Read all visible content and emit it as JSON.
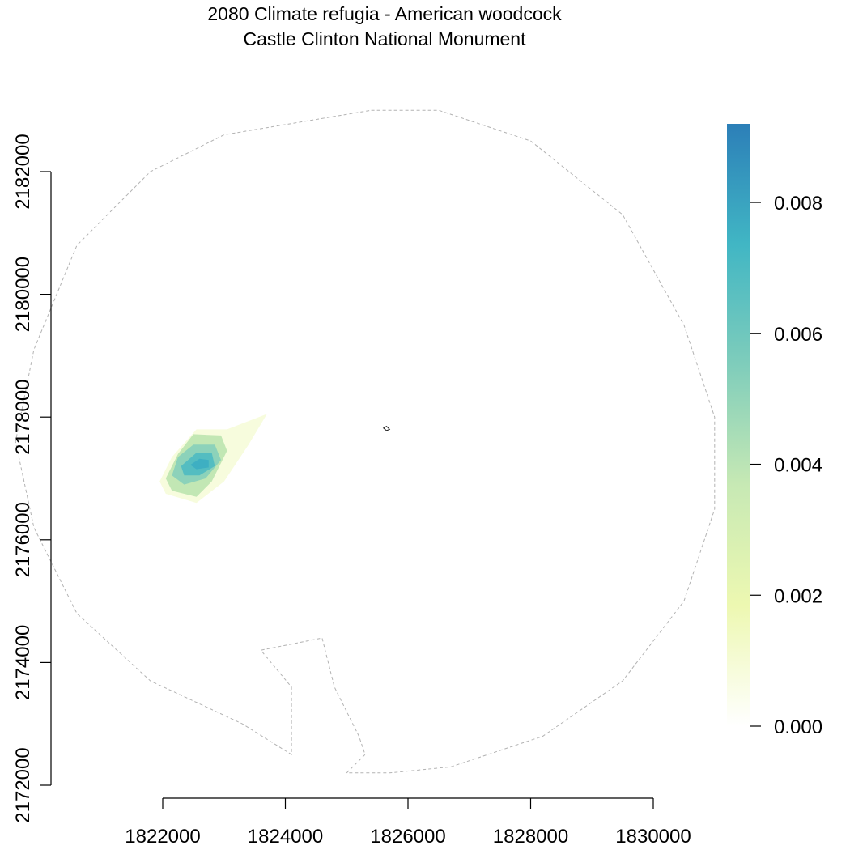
{
  "chart_data": {
    "type": "heatmap",
    "title": "2080 Climate refugia - American woodcock",
    "subtitle": "Castle Clinton National Monument",
    "xlabel": "",
    "ylabel": "",
    "xlim": [
      1820000,
      1830000
    ],
    "ylim": [
      2172000,
      2182000
    ],
    "x_ticks": [
      1822000,
      1824000,
      1826000,
      1828000,
      1830000
    ],
    "y_ticks": [
      2172000,
      2174000,
      2176000,
      2178000,
      2180000,
      2182000
    ],
    "x_tick_labels": [
      "1822000",
      "1824000",
      "1826000",
      "1828000",
      "1830000"
    ],
    "y_tick_labels": [
      "2172000",
      "2174000",
      "2176000",
      "2178000",
      "2180000",
      "2182000"
    ],
    "grid": false,
    "legend": {
      "placement": "right",
      "min": 0.0,
      "max": 0.0092,
      "ticks": [
        0.0,
        0.002,
        0.004,
        0.006,
        0.008
      ],
      "tick_labels": [
        "0.000",
        "0.002",
        "0.004",
        "0.006",
        "0.008"
      ],
      "colors": [
        "#ffffff",
        "#edf8b1",
        "#c7e9b4",
        "#7fcdbb",
        "#41b6c4",
        "#2c7fb8"
      ]
    },
    "buffer_boundary": [
      [
        1825400,
        2183000
      ],
      [
        1826500,
        2183000
      ],
      [
        1828000,
        2182500
      ],
      [
        1829500,
        2181300
      ],
      [
        1830500,
        2179500
      ],
      [
        1831000,
        2178000
      ],
      [
        1831000,
        2176500
      ],
      [
        1830500,
        2175000
      ],
      [
        1829500,
        2173700
      ],
      [
        1828200,
        2172800
      ],
      [
        1826700,
        2172300
      ],
      [
        1825700,
        2172200
      ],
      [
        1825000,
        2172200
      ],
      [
        1825300,
        2172500
      ],
      [
        1825200,
        2172800
      ],
      [
        1824800,
        2173600
      ],
      [
        1824600,
        2174400
      ],
      [
        1823600,
        2174200
      ],
      [
        1824100,
        2173600
      ],
      [
        1824100,
        2172500
      ],
      [
        1823300,
        2173000
      ],
      [
        1821800,
        2173700
      ],
      [
        1820600,
        2174800
      ],
      [
        1819900,
        2176200
      ],
      [
        1819600,
        2177600
      ],
      [
        1819900,
        2179100
      ],
      [
        1820600,
        2180800
      ],
      [
        1821800,
        2182000
      ],
      [
        1823000,
        2182600
      ]
    ],
    "park_boundary": [
      [
        1825650,
        2177850
      ],
      [
        1825700,
        2177800
      ],
      [
        1825650,
        2177780
      ],
      [
        1825600,
        2177820
      ]
    ],
    "refugia_zones": [
      {
        "value": 0.0008,
        "polygon": [
          [
            1822550,
            2177800
          ],
          [
            1823050,
            2177800
          ],
          [
            1823700,
            2178050
          ],
          [
            1823400,
            2177550
          ],
          [
            1823000,
            2176950
          ],
          [
            1822550,
            2176600
          ],
          [
            1822050,
            2176750
          ],
          [
            1821950,
            2176950
          ],
          [
            1822150,
            2177350
          ]
        ]
      },
      {
        "value": 0.0038,
        "polygon": [
          [
            1822500,
            2177720
          ],
          [
            1822950,
            2177700
          ],
          [
            1823050,
            2177450
          ],
          [
            1822800,
            2176950
          ],
          [
            1822550,
            2176700
          ],
          [
            1822150,
            2176800
          ],
          [
            1822050,
            2177000
          ],
          [
            1822250,
            2177400
          ]
        ]
      },
      {
        "value": 0.0052,
        "polygon": [
          [
            1822500,
            2177550
          ],
          [
            1822850,
            2177550
          ],
          [
            1822950,
            2177300
          ],
          [
            1822700,
            2177000
          ],
          [
            1822350,
            2176900
          ],
          [
            1822150,
            2177050
          ],
          [
            1822250,
            2177350
          ]
        ]
      },
      {
        "value": 0.0068,
        "polygon": [
          [
            1822550,
            2177420
          ],
          [
            1822800,
            2177420
          ],
          [
            1822850,
            2177200
          ],
          [
            1822600,
            2177050
          ],
          [
            1822350,
            2177050
          ],
          [
            1822300,
            2177200
          ]
        ]
      },
      {
        "value": 0.0076,
        "polygon": [
          [
            1822600,
            2177320
          ],
          [
            1822750,
            2177300
          ],
          [
            1822750,
            2177180
          ],
          [
            1822550,
            2177150
          ],
          [
            1822450,
            2177220
          ]
        ]
      }
    ]
  }
}
